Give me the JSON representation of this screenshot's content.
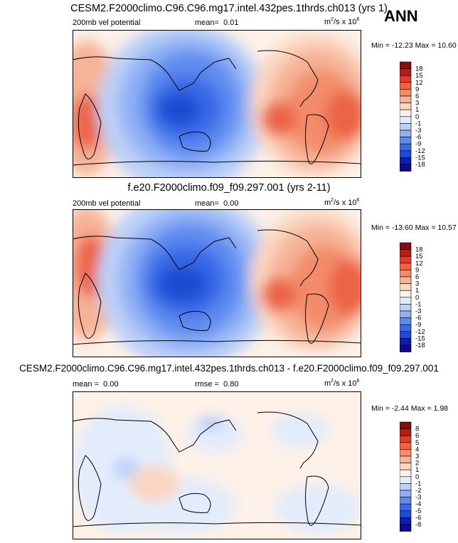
{
  "season": "ANN",
  "colors": {
    "land": "#000000",
    "cbar_vp": [
      "#0b0b8c",
      "#0d1fa8",
      "#1f4bd2",
      "#3969e6",
      "#5d8bf0",
      "#8fb0f5",
      "#bcd0f8",
      "#e3ecfb",
      "#fdf1e8",
      "#fbd6c0",
      "#f7b397",
      "#f38c6b",
      "#ec6346",
      "#e03b26",
      "#b91c12",
      "#8a0b0b"
    ],
    "cbar_diff": [
      "#0b0b8c",
      "#0d1fa8",
      "#1f4bd2",
      "#3969e6",
      "#5d8bf0",
      "#8fb0f5",
      "#bcd0f8",
      "#e3ecfb",
      "#fdf1e8",
      "#fbd6c0",
      "#f7b397",
      "#f38c6b",
      "#ec6346",
      "#e03b26",
      "#b91c12",
      "#8a0b0b"
    ]
  },
  "chart_data": [
    {
      "type": "heatmap",
      "title": "CESM2.F2000climo.C96.C96.mg17.intel.432pes.1thrds.ch013 (yrs 1)",
      "left_label": "200mb vel potential",
      "mean_label": "mean=",
      "mean": "0.01",
      "units_base": "m",
      "units_sup1": "2",
      "units_mid": "/s x 10",
      "units_sup2": "6",
      "min_label": "Min =",
      "min": "-12.23",
      "max_label": "Max =",
      "max": "10.60",
      "levels": [
        18,
        15,
        12,
        9,
        6,
        3,
        1,
        0,
        -1,
        -3,
        -6,
        -9,
        -12,
        -15,
        -18
      ]
    },
    {
      "type": "heatmap",
      "title": "f.e20.F2000climo.f09_f09.297.001 (yrs 2-11)",
      "left_label": "200mb vel potential",
      "mean_label": "mean=",
      "mean": "0.00",
      "units_base": "m",
      "units_sup1": "2",
      "units_mid": "/s x 10",
      "units_sup2": "6",
      "min_label": "Min =",
      "min": "-13.60",
      "max_label": "Max =",
      "max": "10.57",
      "levels": [
        18,
        15,
        12,
        9,
        6,
        3,
        1,
        0,
        -1,
        -3,
        -6,
        -9,
        -12,
        -15,
        -18
      ]
    },
    {
      "type": "heatmap",
      "title": "CESM2.F2000climo.C96.C96.mg17.intel.432pes.1thrds.ch013 - f.e20.F2000climo.f09_f09.297.001",
      "mean_label": "mean =",
      "mean": "0.00",
      "rmse_label": "rmse =",
      "rmse": "0.80",
      "units_base": "m",
      "units_sup1": "2",
      "units_mid": "/s x 10",
      "units_sup2": "6",
      "min_label": "Min =",
      "min": "-2.44",
      "max_label": "Max =",
      "max": "1.98",
      "levels": [
        8,
        6,
        5,
        4,
        3,
        2,
        1,
        0,
        -1,
        -2,
        -3,
        -4,
        -5,
        -6,
        -8
      ]
    }
  ]
}
